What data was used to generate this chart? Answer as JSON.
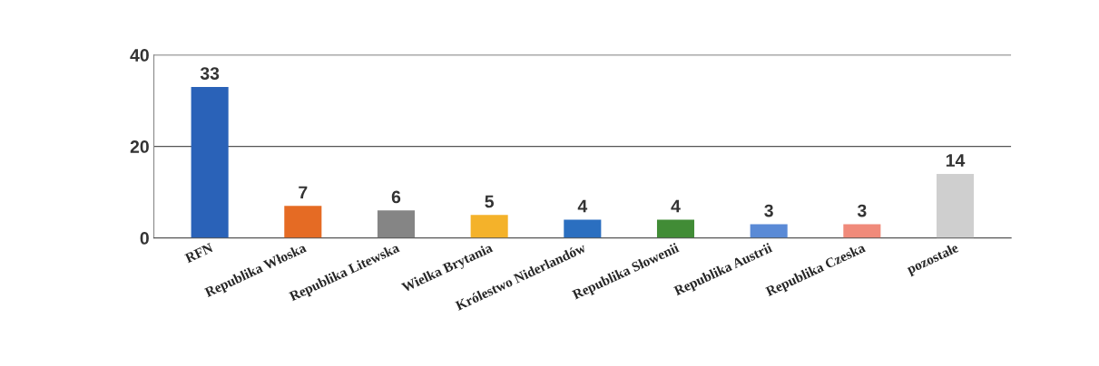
{
  "chart_data": {
    "type": "bar",
    "categories": [
      "RFN",
      "Republika Włoska",
      "Republika Litewska",
      "Wielka Brytania",
      "Królestwo Niderlandów",
      "Republika Słowenii",
      "Republika Austrii",
      "Republika Czeska",
      "pozostałe"
    ],
    "values": [
      33,
      7,
      6,
      5,
      4,
      4,
      3,
      3,
      14
    ],
    "colors": [
      "#2a62b8",
      "#e56b24",
      "#858585",
      "#f4b22a",
      "#2b6fc0",
      "#418c36",
      "#5a8ad6",
      "#f08a7a",
      "#cfcfcf"
    ],
    "ylim": [
      0,
      40
    ],
    "yticks": [
      0,
      20,
      40
    ],
    "grid": "y",
    "data_labels": true
  }
}
